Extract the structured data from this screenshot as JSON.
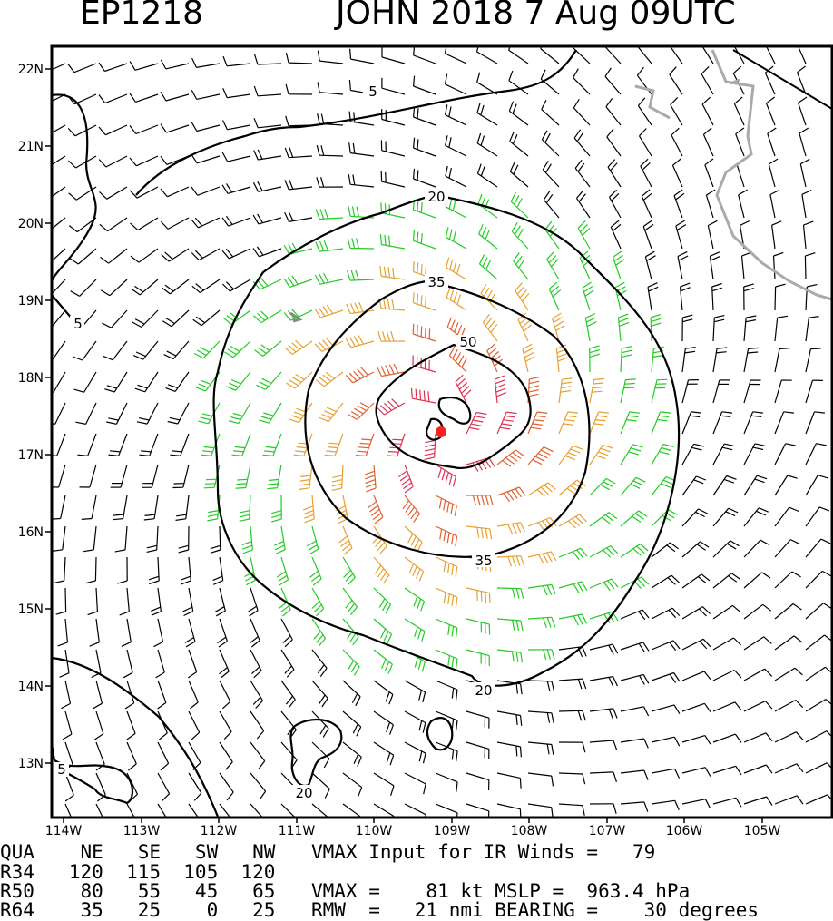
{
  "header": {
    "storm_id": "EP1218",
    "storm_title": "JOHN 2018  7 Aug 09UTC"
  },
  "map": {
    "lat_labels": [
      "22N",
      "21N",
      "20N",
      "19N",
      "18N",
      "17N",
      "16N",
      "15N",
      "14N",
      "13N"
    ],
    "lon_labels": [
      "114W",
      "113W",
      "112W",
      "111W",
      "110W",
      "109W",
      "108W",
      "107W",
      "106W",
      "105W"
    ],
    "contour_labels": {
      "c5": "5",
      "c20": "20",
      "c35": "35",
      "c50": "50"
    },
    "colors": {
      "barb_weak": "#000000",
      "barb_34kt": "#22cc22",
      "barb_50kt": "#e8a030",
      "barb_64kt": "#e06030",
      "barb_core": "#e03050",
      "center_dot": "#ff2020",
      "coastline": "#aaaaaa",
      "contour": "#000000"
    }
  },
  "table": {
    "header": "QUA    NE   SE   SW   NW",
    "r34": "R34   120  115  105  120",
    "r50": "R50    80   55   45   65",
    "r64": "R64    35   25    0   25"
  },
  "stats": {
    "line1": "VMAX Input for IR Winds =   79",
    "line2": "VMAX =    81 kt MSLP =  963.4 hPa",
    "line3": "RMW  =   21 nmi BEARING =    30 degrees"
  }
}
